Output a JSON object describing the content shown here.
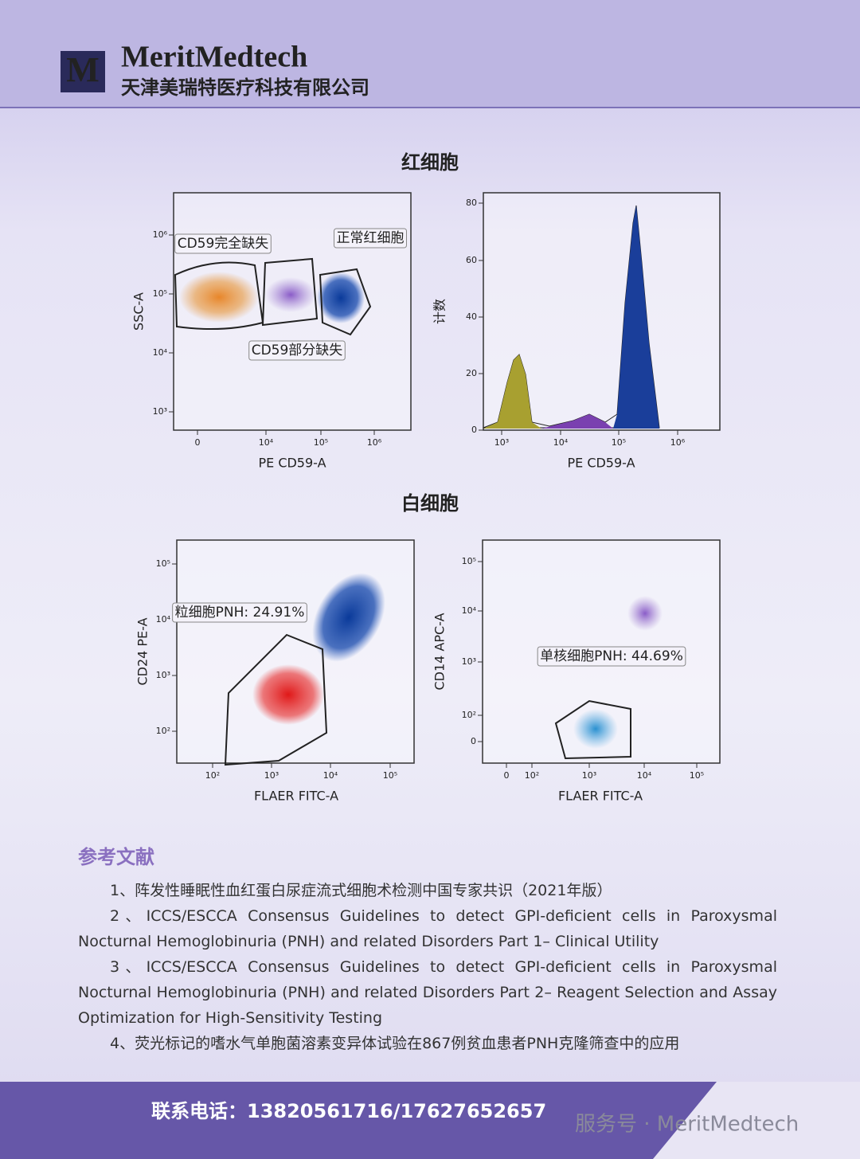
{
  "header": {
    "brand": "MeritMedtech",
    "company": "天津美瑞特医疗科技有限公司"
  },
  "red_cells": {
    "title": "红细胞",
    "scatter": {
      "ylabel": "SSC-A",
      "xlabel": "PE  CD59-A",
      "yticks": [
        "10⁶",
        "10⁵",
        "10⁴",
        "10³"
      ],
      "xticks": [
        "0",
        "10⁴",
        "10⁵",
        "10⁶"
      ],
      "gates": [
        "CD59完全缺失",
        "正常红细胞",
        "CD59部分缺失"
      ]
    },
    "histogram": {
      "ylabel": "计数",
      "xlabel": "PE  CD59-A",
      "yticks": [
        "80",
        "60",
        "40",
        "20",
        "0"
      ],
      "xticks": [
        "10³",
        "10⁴",
        "10⁵",
        "10⁶"
      ]
    }
  },
  "white_cells": {
    "title": "白细胞",
    "granulocyte": {
      "ylabel": "CD24 PE-A",
      "xlabel": "FLAER FITC-A",
      "yticks": [
        "10⁵",
        "10⁴",
        "10³",
        "10²"
      ],
      "xticks": [
        "10²",
        "10³",
        "10⁴",
        "10⁵"
      ],
      "gate": "粒细胞PNH: 24.91%"
    },
    "monocyte": {
      "ylabel": "CD14 APC-A",
      "xlabel": "FLAER FITC-A",
      "yticks": [
        "10⁵",
        "10⁴",
        "10³",
        "10²",
        "0"
      ],
      "xticks": [
        "0",
        "10²",
        "10³",
        "10⁴",
        "10⁵"
      ],
      "gate": "单核细胞PNH: 44.69%"
    }
  },
  "references": {
    "title": "参考文献",
    "items": [
      "1、阵发性睡眠性血红蛋白尿症流式细胞术检测中国专家共识（2021年版）",
      "2、ICCS/ESCCA Consensus Guidelines to detect GPI-deficient cells in Paroxysmal Nocturnal Hemoglobinuria (PNH) and related Disorders Part 1– Clinical Utility",
      "3、ICCS/ESCCA Consensus Guidelines to detect GPI-deficient cells in Paroxysmal Nocturnal Hemoglobinuria (PNH) and related Disorders Part 2– Reagent Selection and Assay Optimization for High-Sensitivity Testing",
      "4、荧光标记的嗜水气单胞菌溶素变异体试验在867例贫血患者PNH克隆筛查中的应用"
    ]
  },
  "footer": {
    "contact": "联系电话：13820561716/17627652657",
    "watermark": "服务号 · MeritMedtech"
  }
}
